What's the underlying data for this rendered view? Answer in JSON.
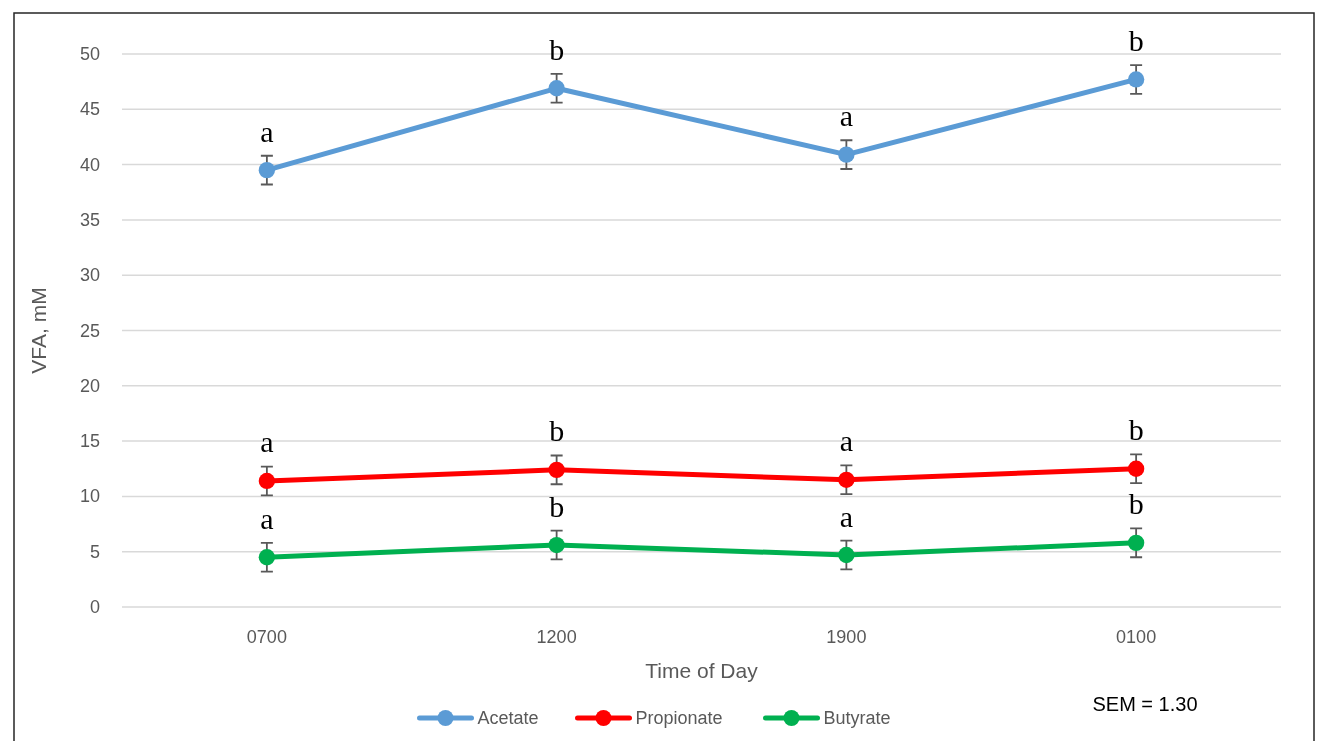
{
  "chart_data": {
    "type": "line",
    "xlabel": "Time of Day",
    "ylabel": "VFA, mM",
    "categories": [
      "0700",
      "1200",
      "1900",
      "0100"
    ],
    "series": [
      {
        "name": "Acetate",
        "color": "#5b9bd5",
        "values": [
          39.5,
          46.9,
          40.9,
          47.7
        ],
        "errors": [
          1.3,
          1.3,
          1.3,
          1.3
        ]
      },
      {
        "name": "Propionate",
        "color": "#ff0000",
        "values": [
          11.4,
          12.4,
          11.5,
          12.5
        ],
        "errors": [
          1.3,
          1.3,
          1.3,
          1.3
        ]
      },
      {
        "name": "Butyrate",
        "color": "#00b050",
        "values": [
          4.5,
          5.6,
          4.7,
          5.8
        ],
        "errors": [
          1.3,
          1.3,
          1.3,
          1.3
        ]
      }
    ],
    "ylim": [
      0,
      50
    ],
    "yticks": [
      0,
      5,
      10,
      15,
      20,
      25,
      30,
      35,
      40,
      45,
      50
    ],
    "grid": "y",
    "legend": "bottom",
    "marker": "circle",
    "line_style": "solid",
    "annotations": [
      {
        "text": "a",
        "x": "0700",
        "y": 39.5
      },
      {
        "text": "b",
        "x": "1200",
        "y": 46.9
      },
      {
        "text": "a",
        "x": "1900",
        "y": 40.9
      },
      {
        "text": "b",
        "x": "0100",
        "y": 47.7
      },
      {
        "text": "a",
        "x": "0700",
        "y": 11.4
      },
      {
        "text": "b",
        "x": "1200",
        "y": 12.4
      },
      {
        "text": "a",
        "x": "1900",
        "y": 11.5
      },
      {
        "text": "b",
        "x": "0100",
        "y": 12.5
      },
      {
        "text": "a",
        "x": "0700",
        "y": 4.5
      },
      {
        "text": "b",
        "x": "1200",
        "y": 5.6
      },
      {
        "text": "a",
        "x": "1900",
        "y": 4.7
      },
      {
        "text": "b",
        "x": "0100",
        "y": 5.8
      },
      "SEM = 1.30"
    ]
  }
}
